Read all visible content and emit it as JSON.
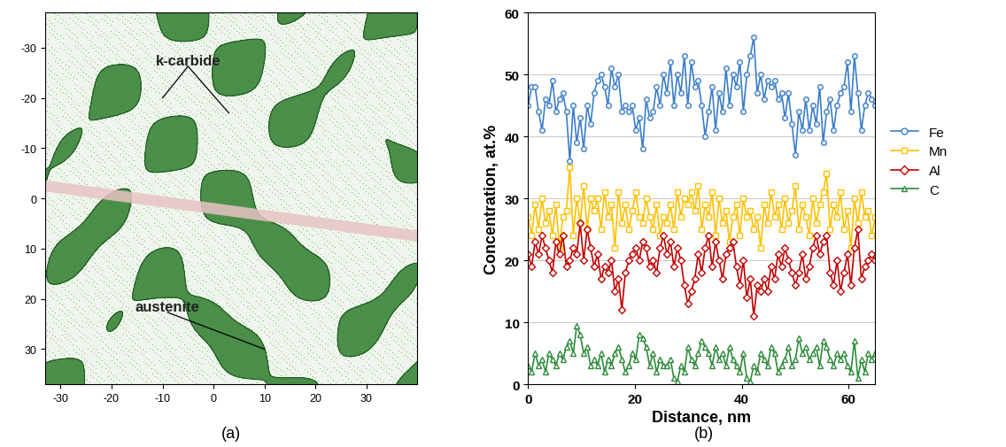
{
  "chart_data": [
    {
      "type": "image",
      "caption": "(a)",
      "annotations": [
        "k-carbide",
        "austenite"
      ],
      "xlim": [
        -33,
        40
      ],
      "ylim": [
        37,
        -37
      ],
      "xticks": [
        -30,
        -20,
        -10,
        0,
        10,
        20,
        30
      ],
      "yticks": [
        -30,
        -20,
        -10,
        0,
        10,
        20,
        30
      ],
      "color": "#2e7d2e",
      "grid": false
    },
    {
      "type": "line",
      "caption": "(b)",
      "x_label": "Distance, nm",
      "y_label": "Concentration, at.%",
      "xlim": [
        0,
        65
      ],
      "ylim": [
        0,
        60
      ],
      "xticks": [
        0,
        20,
        40,
        60
      ],
      "yticks": [
        0,
        10,
        20,
        30,
        40,
        50,
        60
      ],
      "grid": "y",
      "legend": "right",
      "x": [
        0,
        0.65,
        1.3,
        1.95,
        2.6,
        3.25,
        3.9,
        4.55,
        5.2,
        5.85,
        6.5,
        7.15,
        7.8,
        8.45,
        9.1,
        9.75,
        10.4,
        11.05,
        11.7,
        12.35,
        13,
        13.65,
        14.3,
        14.95,
        15.6,
        16.25,
        16.9,
        17.55,
        18.2,
        18.85,
        19.5,
        20.15,
        20.8,
        21.45,
        22.1,
        22.75,
        23.4,
        24.05,
        24.7,
        25.35,
        26,
        26.65,
        27.3,
        27.95,
        28.6,
        29.25,
        29.9,
        30.55,
        31.2,
        31.85,
        32.5,
        33.15,
        33.8,
        34.45,
        35.1,
        35.75,
        36.4,
        37.05,
        37.7,
        38.35,
        39,
        39.65,
        40.3,
        40.95,
        41.6,
        42.25,
        42.9,
        43.55,
        44.2,
        44.85,
        45.5,
        46.15,
        46.8,
        47.45,
        48.1,
        48.75,
        49.4,
        50.05,
        50.7,
        51.35,
        52,
        52.65,
        53.3,
        53.95,
        54.6,
        55.25,
        55.9,
        56.55,
        57.2,
        57.85,
        58.5,
        59.15,
        59.8,
        60.45,
        61.1,
        61.75,
        62.4,
        63.05,
        63.7,
        64.35,
        65
      ],
      "series": [
        {
          "name": "Fe",
          "color": "#3a7dc9",
          "marker": "circle",
          "values": [
            45,
            48,
            48,
            44,
            41,
            46,
            45,
            49,
            44,
            46,
            47,
            44,
            36,
            45,
            39,
            43,
            38,
            45,
            42,
            47,
            49,
            50,
            48,
            45,
            51,
            48,
            50,
            44,
            45,
            44,
            45,
            41,
            43,
            38,
            46,
            43,
            44,
            48,
            45,
            50,
            47,
            52,
            45,
            50,
            47,
            53,
            45,
            52,
            48,
            49,
            45,
            40,
            44,
            48,
            41,
            47,
            44,
            51,
            45,
            50,
            48,
            52,
            44,
            50,
            53,
            56,
            47,
            50,
            46,
            49,
            48,
            49,
            46,
            47,
            43,
            47,
            42,
            37,
            44,
            41,
            46,
            41,
            45,
            42,
            48,
            39,
            44,
            46,
            41,
            45,
            47,
            48,
            52,
            44,
            53,
            47,
            41,
            45,
            47,
            46,
            45
          ]
        },
        {
          "name": "Mn",
          "color": "#ffc000",
          "marker": "square",
          "values": [
            27,
            24,
            29,
            25,
            30,
            26,
            28,
            24,
            29,
            22,
            27,
            28,
            35,
            24,
            30,
            26,
            32,
            25,
            30,
            28,
            30,
            25,
            31,
            27,
            29,
            22,
            31,
            26,
            29,
            25,
            28,
            31,
            27,
            26,
            30,
            27,
            25,
            29,
            24,
            27,
            26,
            29,
            25,
            31,
            27,
            30,
            29,
            31,
            28,
            32,
            25,
            29,
            27,
            31,
            24,
            30,
            26,
            28,
            23,
            27,
            29,
            24,
            30,
            27,
            28,
            25,
            27,
            22,
            29,
            26,
            31,
            27,
            29,
            25,
            30,
            26,
            28,
            32,
            25,
            29,
            27,
            24,
            30,
            26,
            29,
            31,
            34,
            25,
            29,
            27,
            31,
            25,
            28,
            22,
            30,
            26,
            31,
            27,
            28,
            24,
            27
          ]
        },
        {
          "name": "Al",
          "color": "#c00000",
          "marker": "diamond",
          "values": [
            21,
            19,
            23,
            21,
            24,
            22,
            20,
            18,
            23,
            21,
            24,
            19,
            20,
            22,
            21,
            26,
            20,
            25,
            22,
            19,
            21,
            17,
            19,
            18,
            20,
            15,
            17,
            12,
            18,
            20,
            21,
            22,
            20,
            23,
            22,
            19,
            20,
            18,
            22,
            24,
            21,
            23,
            19,
            22,
            20,
            16,
            13,
            15,
            17,
            21,
            18,
            22,
            24,
            19,
            23,
            20,
            17,
            21,
            22,
            23,
            19,
            16,
            20,
            14,
            17,
            11,
            16,
            15,
            17,
            15,
            19,
            17,
            21,
            19,
            22,
            20,
            18,
            16,
            18,
            21,
            17,
            19,
            22,
            24,
            21,
            23,
            24,
            18,
            16,
            20,
            15,
            18,
            21,
            16,
            22,
            25,
            17,
            19,
            20,
            21,
            20
          ]
        },
        {
          "name": "C",
          "color": "#2e8b3a",
          "marker": "triangle",
          "values": [
            3,
            2,
            5,
            3,
            4,
            2,
            5,
            4,
            3,
            5,
            4,
            6,
            7,
            5,
            9.5,
            8,
            5,
            6,
            3,
            4,
            3,
            5,
            2,
            4,
            3,
            5,
            6,
            4,
            2,
            3,
            5,
            4,
            8,
            7.5,
            6,
            3,
            5,
            2,
            4,
            3,
            3,
            4,
            1,
            0.5,
            3,
            2,
            6,
            4,
            3,
            5,
            7,
            6,
            5,
            3,
            6,
            4,
            5,
            3,
            6,
            4,
            3,
            2,
            5,
            1,
            0.5,
            3,
            2,
            5,
            4,
            3,
            6,
            5,
            2,
            3,
            4,
            6,
            3,
            4,
            7.5,
            5,
            6,
            4,
            5,
            6,
            3,
            7,
            6,
            4,
            3,
            5,
            4,
            5,
            3,
            2,
            7,
            1,
            4,
            2,
            5,
            4,
            5
          ]
        }
      ]
    }
  ]
}
